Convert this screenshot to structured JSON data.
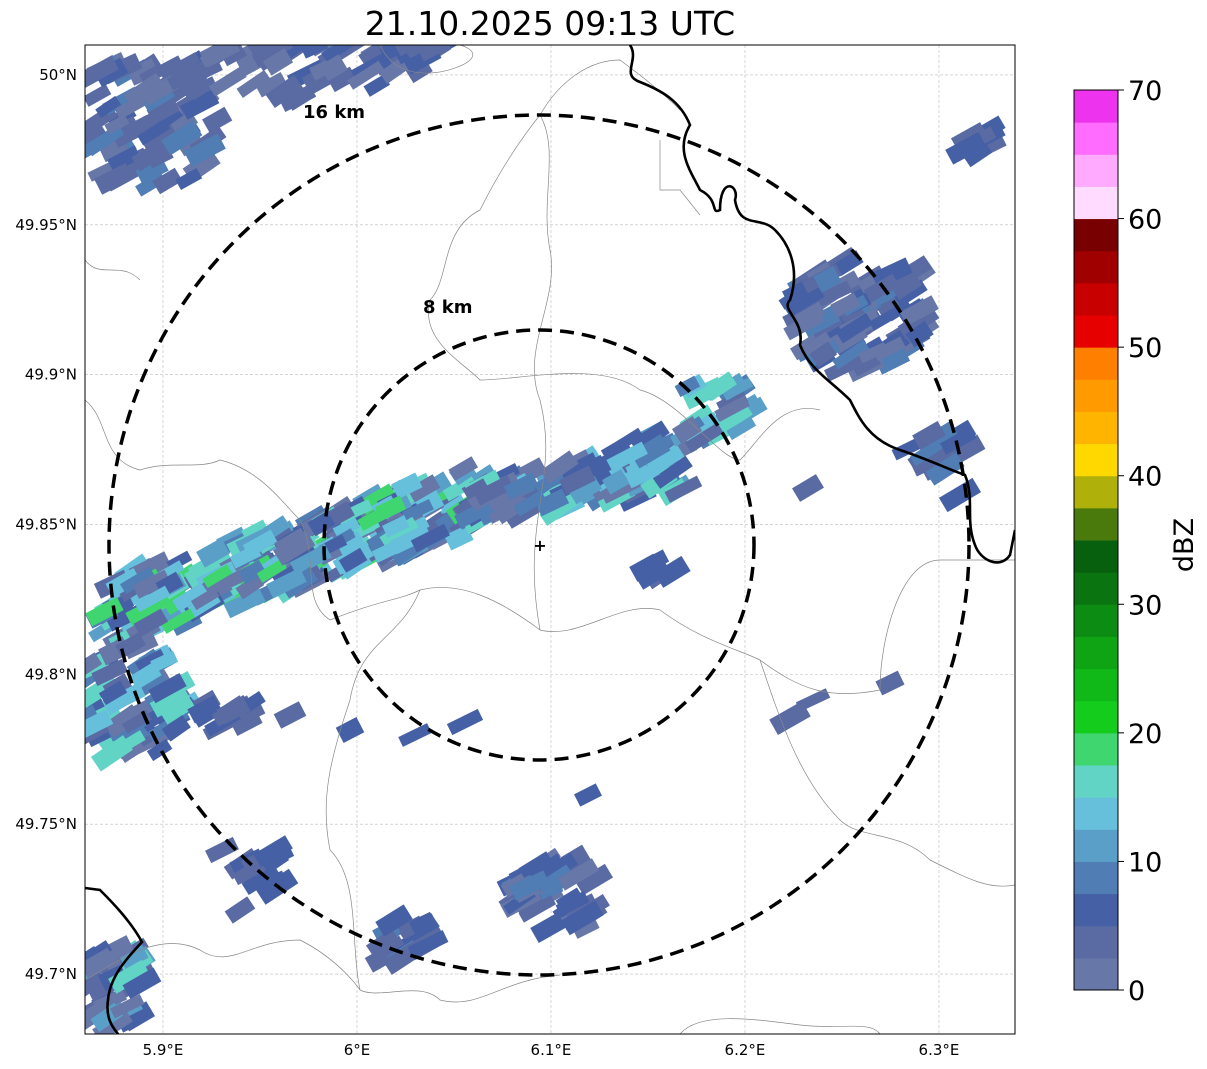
{
  "title": "21.10.2025 09:13 UTC",
  "map": {
    "lon_ticks": [
      {
        "value": 5.9,
        "label": "5.9°E"
      },
      {
        "value": 6.0,
        "label": "6°E"
      },
      {
        "value": 6.1,
        "label": "6.1°E"
      },
      {
        "value": 6.2,
        "label": "6.2°E"
      },
      {
        "value": 6.3,
        "label": "6.3°E"
      }
    ],
    "lat_ticks": [
      {
        "value": 50.0,
        "label": "50°N"
      },
      {
        "value": 49.95,
        "label": "49.95°N"
      },
      {
        "value": 49.9,
        "label": "49.9°N"
      },
      {
        "value": 49.85,
        "label": "49.85°N"
      },
      {
        "value": 49.8,
        "label": "49.8°N"
      },
      {
        "value": 49.75,
        "label": "49.75°N"
      },
      {
        "value": 49.7,
        "label": "49.7°N"
      }
    ],
    "lon_range": [
      5.8598,
      6.3392
    ],
    "lat_range": [
      49.68,
      50.01
    ],
    "radar_center": {
      "lon": 6.0945,
      "lat": 49.8433
    },
    "range_rings": [
      {
        "label": "8 km",
        "km": 8
      },
      {
        "label": "16 km",
        "km": 16
      }
    ]
  },
  "colorbar": {
    "label": "dBZ",
    "min": 0,
    "max": 70,
    "step": 2.5,
    "ticks": [
      "0",
      "10",
      "20",
      "30",
      "40",
      "50",
      "60",
      "70"
    ],
    "colors": [
      "#6677a8",
      "#5a6aa3",
      "#4560a5",
      "#4f7db4",
      "#5a9fc8",
      "#66c0dc",
      "#62d4c6",
      "#3fd670",
      "#14cc1c",
      "#10b818",
      "#0ea414",
      "#0c8c12",
      "#0a7410",
      "#07600e",
      "#4a7a0c",
      "#b0b00a",
      "#ffd800",
      "#ffb400",
      "#ff9a00",
      "#ff8000",
      "#e60000",
      "#c80000",
      "#a00000",
      "#780000",
      "#ffdcff",
      "#ffaaff",
      "#ff6cff",
      "#ee33ee"
    ]
  }
}
